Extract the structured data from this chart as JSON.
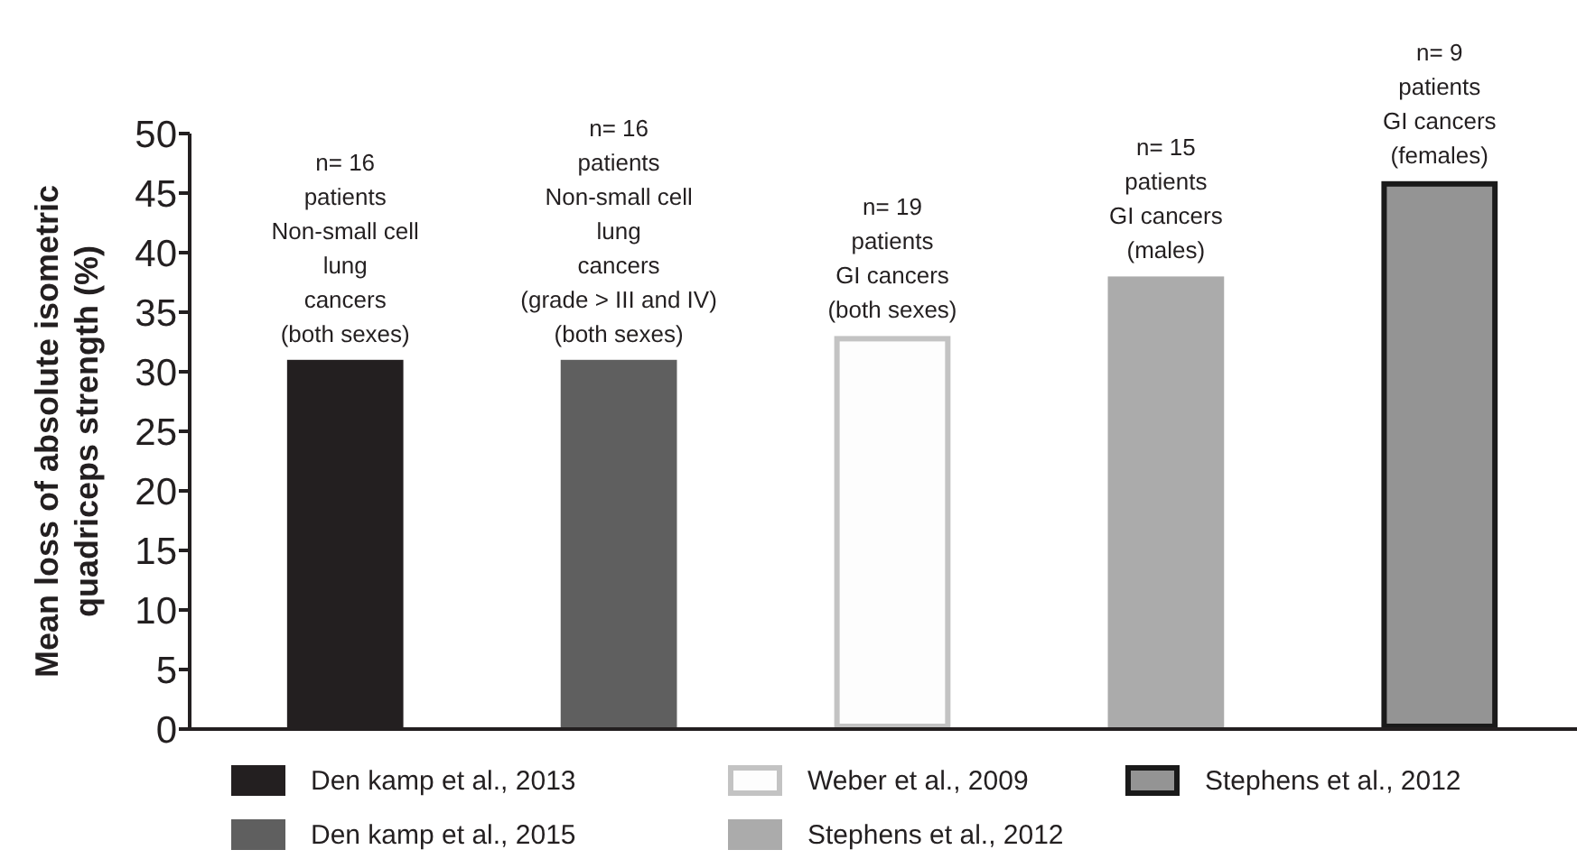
{
  "chart_data": {
    "type": "bar",
    "categories": [
      null,
      null,
      null,
      null,
      null
    ],
    "ylabel": "Mean loss of absolute isometric\nquadriceps strength (%)",
    "ylim": [
      0,
      50
    ],
    "yticks": [
      0,
      5,
      10,
      15,
      20,
      25,
      30,
      35,
      40,
      45,
      50
    ],
    "series": [
      {
        "name": "Den kamp et al., 2013",
        "color": "#231f20",
        "values": [
          31,
          null,
          null,
          null,
          null
        ]
      },
      {
        "name": "Den kamp et al., 2015",
        "color": "#5f5f5f",
        "values": [
          null,
          31,
          null,
          null,
          null
        ]
      },
      {
        "name": "Weber et al., 2009",
        "color": "#fdfdfd",
        "values": [
          null,
          null,
          33,
          null,
          null
        ]
      },
      {
        "name": "Stephens et al., 2012",
        "color": "#ababab",
        "values": [
          null,
          null,
          null,
          38,
          null
        ]
      },
      {
        "name": "Stephens et al., 2012",
        "color": "#949494",
        "values": [
          null,
          null,
          null,
          null,
          46
        ]
      }
    ],
    "annotations": [
      {
        "text": "n= 16\npatients\nNon-small cell\nlung\ncancers\n(both sexes)",
        "y": 31
      },
      {
        "text": "n= 16\npatients\nNon-small cell\nlung\ncancers\n(grade > III and IV)\n(both sexes)",
        "y": 31
      },
      {
        "text": "n= 19\npatients\nGI cancers\n(both sexes)",
        "y": 33
      },
      {
        "text": "n= 15\npatients\nGI cancers\n(males)",
        "y": 38
      },
      {
        "text": "n= 9\npatients\nGI cancers\n(females)",
        "y": 46
      }
    ],
    "legend": "bottom",
    "grid": false
  }
}
